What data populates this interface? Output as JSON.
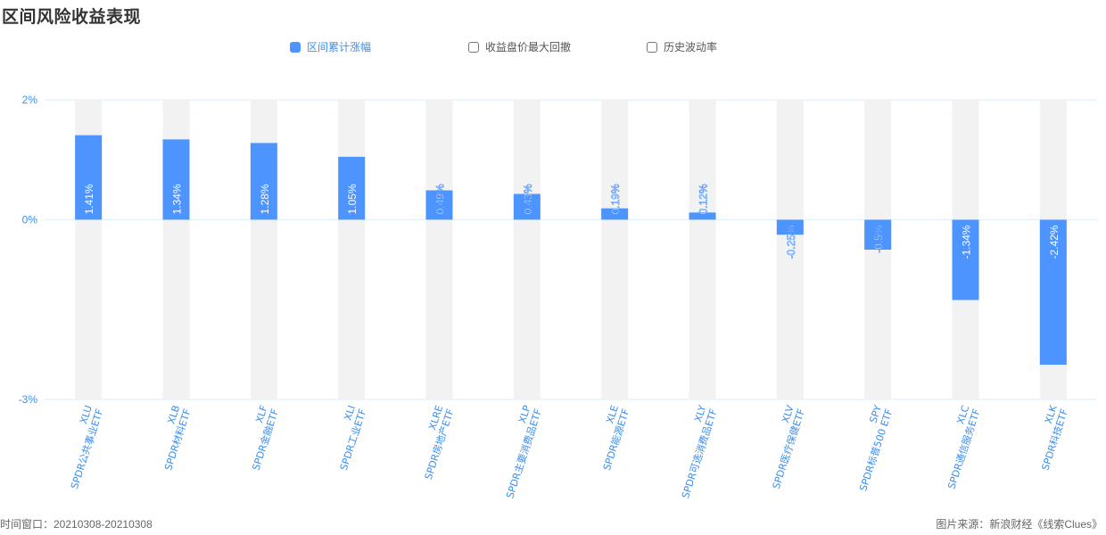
{
  "title": "区间风险收益表现",
  "legend": [
    {
      "label": "区间累计涨幅",
      "active": true
    },
    {
      "label": "收益盘价最大回撤",
      "active": false
    },
    {
      "label": "历史波动率",
      "active": false
    }
  ],
  "footer": {
    "window": "时间窗口：20210308-20210308",
    "source": "图片来源：新浪财经《线索Clues》"
  },
  "colors": {
    "bar": "#4d94ff",
    "background_bar": "#f2f2f2",
    "axis_text": "#3a8ff0",
    "grid": "#d9eef8"
  },
  "chart_data": {
    "type": "bar",
    "title": "区间风险收益表现",
    "series": [
      {
        "name": "区间累计涨幅",
        "values": [
          1.41,
          1.34,
          1.28,
          1.05,
          0.49,
          0.43,
          0.19,
          0.12,
          -0.25,
          -0.5,
          -1.34,
          -2.42
        ]
      }
    ],
    "categories": [
      {
        "code": "XLU",
        "name": "SPDR公共事业ETF"
      },
      {
        "code": "XLB",
        "name": "SPDR材料ETF"
      },
      {
        "code": "XLF",
        "name": "SPDR金融ETF"
      },
      {
        "code": "XLI",
        "name": "SPDR工业ETF"
      },
      {
        "code": "XLRE",
        "name": "SPDR房地产ETF"
      },
      {
        "code": "XLP",
        "name": "SPDR主要消费品ETF"
      },
      {
        "code": "XLE",
        "name": "SPDR能源ETF"
      },
      {
        "code": "XLY",
        "name": "SPDR可选消费品ETF"
      },
      {
        "code": "XLV",
        "name": "SPDR医疗保健ETF"
      },
      {
        "code": "SPY",
        "name": "SPDR标普500 ETF"
      },
      {
        "code": "XLC",
        "name": "SPDR通信服务ETF"
      },
      {
        "code": "XLK",
        "name": "SPDR科技ETF"
      }
    ],
    "data_labels": [
      "1.41%",
      "1.34%",
      "1.28%",
      "1.05%",
      "0.49%",
      "0.43%",
      "0.19%",
      "0.12%",
      "-0.25%",
      "-0.5%",
      "-1.34%",
      "-2.42%"
    ],
    "yticks": [
      "2%",
      "0%",
      "-3%"
    ],
    "ytick_values": [
      2,
      0,
      -3
    ],
    "ylim": [
      -3,
      2
    ],
    "grid": true,
    "legend_position": "top-center"
  }
}
